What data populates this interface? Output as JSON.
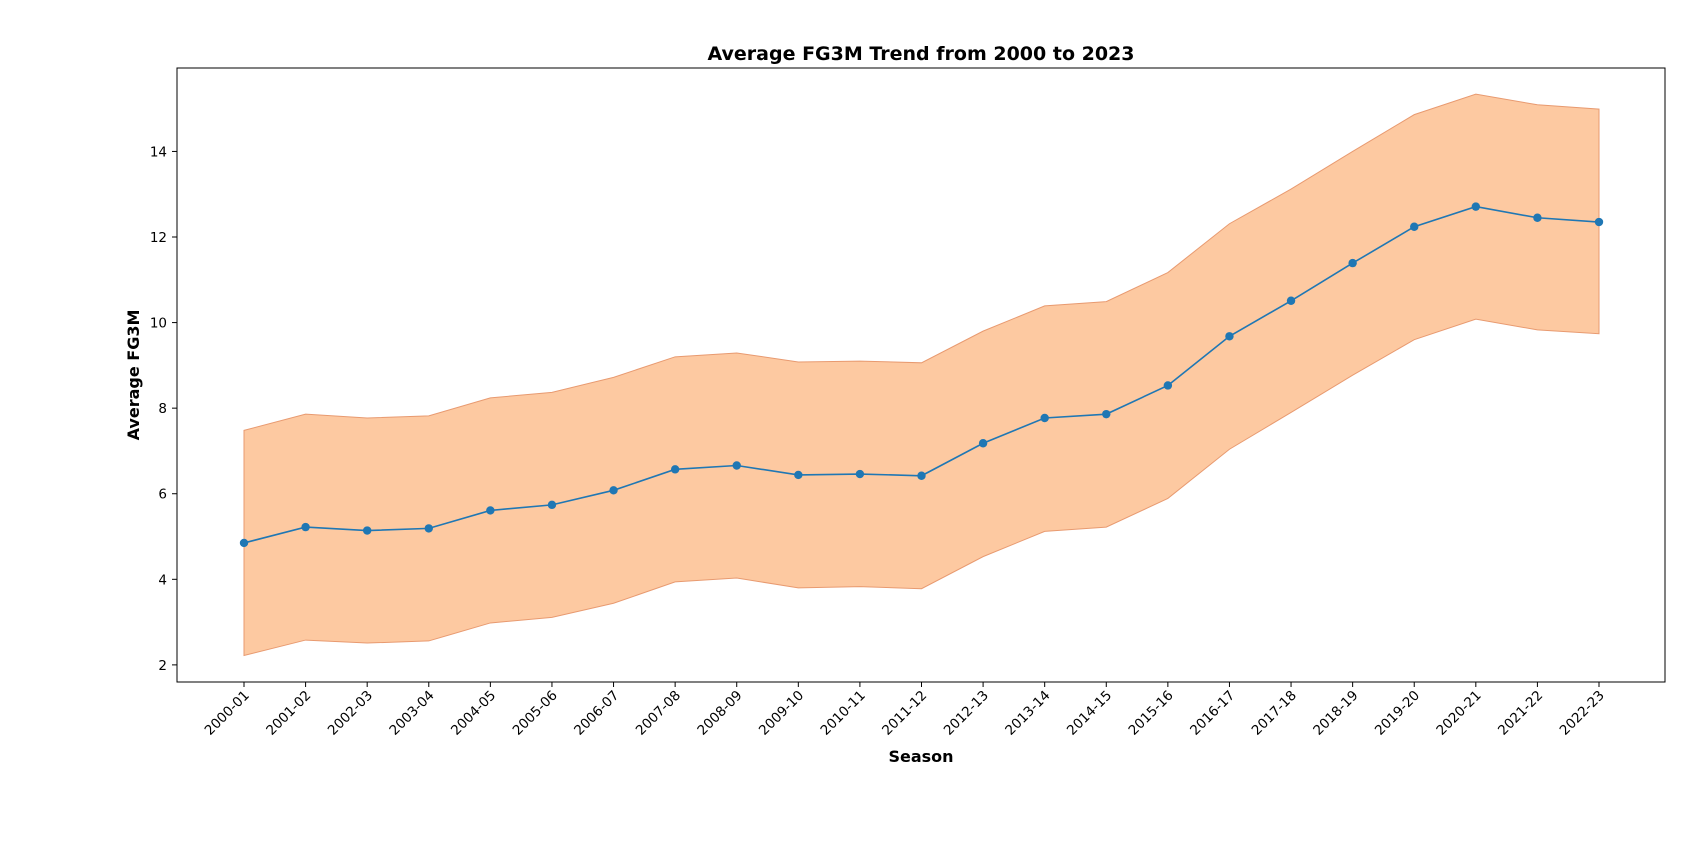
{
  "chart_data": {
    "type": "line",
    "title": "Average FG3M Trend from 2000 to 2023",
    "xlabel": "Season",
    "ylabel": "Average FG3M",
    "categories": [
      "2000-01",
      "2001-02",
      "2002-03",
      "2003-04",
      "2004-05",
      "2005-06",
      "2006-07",
      "2007-08",
      "2008-09",
      "2009-10",
      "2010-11",
      "2011-12",
      "2012-13",
      "2013-14",
      "2014-15",
      "2015-16",
      "2016-17",
      "2017-18",
      "2018-19",
      "2019-20",
      "2020-21",
      "2021-22",
      "2022-23"
    ],
    "series": [
      {
        "name": "Average FG3M",
        "values": [
          4.85,
          5.22,
          5.14,
          5.19,
          5.61,
          5.74,
          6.08,
          6.57,
          6.66,
          6.44,
          6.46,
          6.42,
          7.18,
          7.77,
          7.86,
          8.53,
          9.68,
          10.51,
          11.39,
          12.24,
          12.71,
          12.45,
          12.35
        ],
        "color": "#1f77b4"
      }
    ],
    "band": {
      "upper": [
        7.48,
        7.86,
        7.77,
        7.82,
        8.24,
        8.37,
        8.72,
        9.2,
        9.29,
        9.08,
        9.1,
        9.06,
        9.8,
        10.39,
        10.49,
        11.17,
        12.31,
        13.12,
        14.0,
        14.86,
        15.34,
        15.09,
        14.99
      ],
      "lower": [
        2.22,
        2.58,
        2.51,
        2.56,
        2.98,
        3.11,
        3.44,
        3.94,
        4.03,
        3.8,
        3.83,
        3.78,
        4.53,
        5.12,
        5.22,
        5.89,
        7.04,
        7.9,
        8.77,
        9.6,
        10.08,
        9.83,
        9.74
      ],
      "color": "#fdc9a1",
      "edge_color": "#e89a70"
    },
    "ylim": [
      1.6,
      15.95
    ],
    "yticks": [
      2,
      4,
      6,
      8,
      10,
      12,
      14
    ],
    "grid": false,
    "legend": "none"
  }
}
